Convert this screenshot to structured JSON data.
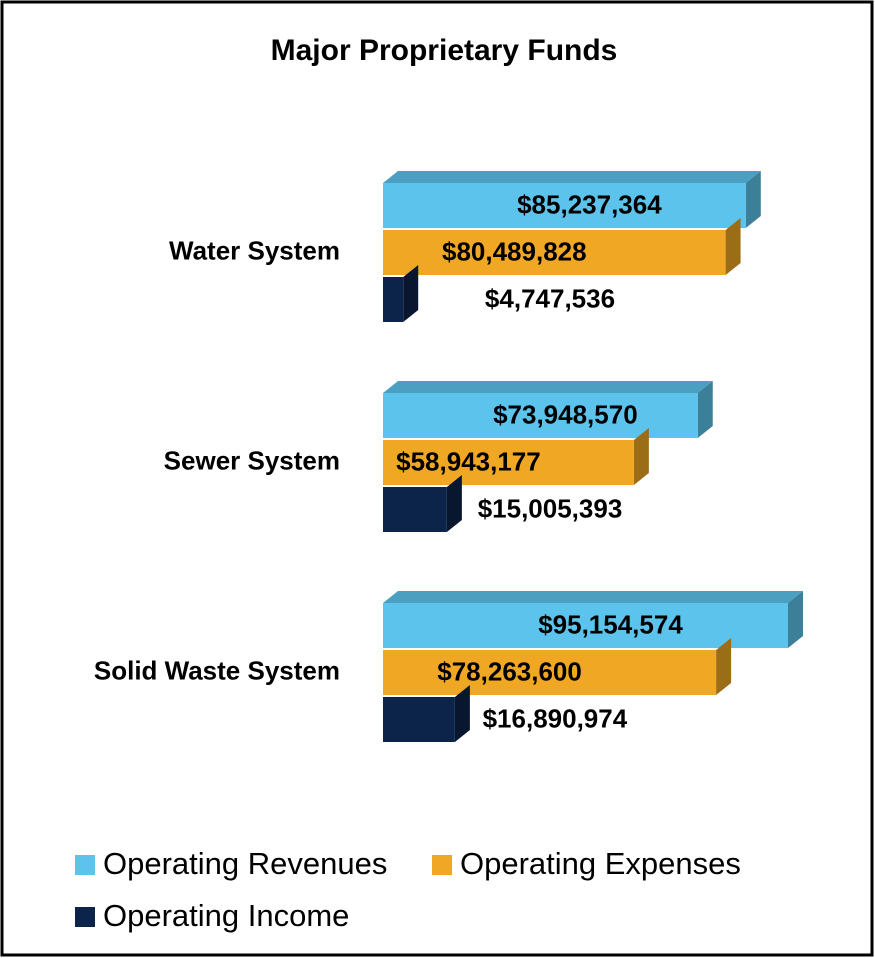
{
  "chart_data": {
    "type": "bar3d_horizontal",
    "title": "Major Proprietary Funds",
    "categories": [
      "Water System",
      "Sewer System",
      "Solid Waste System"
    ],
    "series": [
      {
        "name": "Operating Revenues",
        "color": "#5bc3ec",
        "values": [
          85237364,
          73948570,
          95154574
        ],
        "value_labels": [
          "$85,237,364",
          "$73,948,570",
          "$95,154,574"
        ]
      },
      {
        "name": "Operating Expenses",
        "color": "#f0a824",
        "values": [
          80489828,
          58943177,
          78263600
        ],
        "value_labels": [
          "$80,489,828",
          "$58,943,177",
          "$78,263,600"
        ]
      },
      {
        "name": "Operating Income",
        "color": "#0c2449",
        "values": [
          4747536,
          15005393,
          16890974
        ],
        "value_labels": [
          "$4,747,536",
          "$15,005,393",
          "$16,890,974"
        ]
      }
    ],
    "legend": "bottom"
  }
}
